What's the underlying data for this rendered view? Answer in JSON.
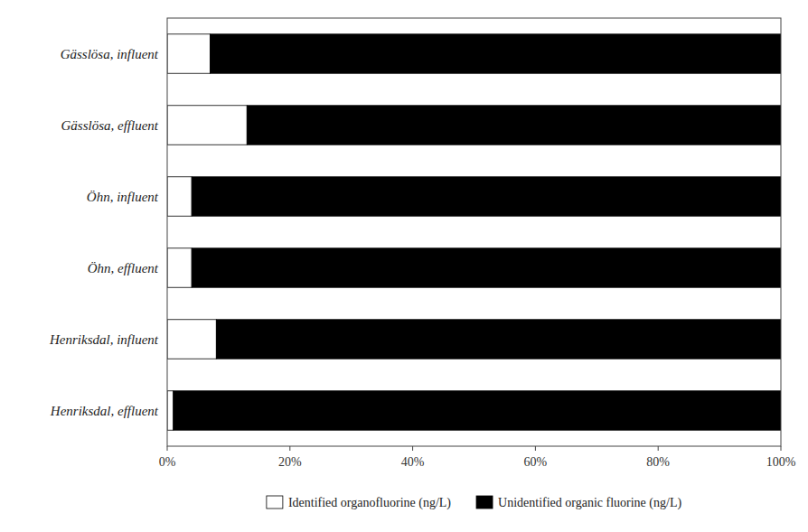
{
  "chart_data": {
    "type": "bar",
    "orientation": "horizontal",
    "stacked": true,
    "categories": [
      "Henriksdal, effluent",
      "Henriksdal, influent",
      "Öhn, effluent",
      "Öhn, influent",
      "Gässlösa, effluent",
      "Gässlösa, influent"
    ],
    "series": [
      {
        "name": "Identified organofluorine (ng/L)",
        "color": "#ffffff",
        "values": [
          1,
          8,
          4,
          4,
          13,
          7
        ]
      },
      {
        "name": "Unidentified organic fluorine (ng/L)",
        "color": "#000000",
        "values": [
          99,
          92,
          96,
          96,
          87,
          93
        ]
      }
    ],
    "xlim": [
      0,
      100
    ],
    "xticks": [
      {
        "value": 0,
        "label": "0%"
      },
      {
        "value": 20,
        "label": "20%"
      },
      {
        "value": 40,
        "label": "40%"
      },
      {
        "value": 60,
        "label": "60%"
      },
      {
        "value": 80,
        "label": "80%"
      },
      {
        "value": 100,
        "label": "100%"
      }
    ],
    "grid": false,
    "legend": "bottom"
  }
}
